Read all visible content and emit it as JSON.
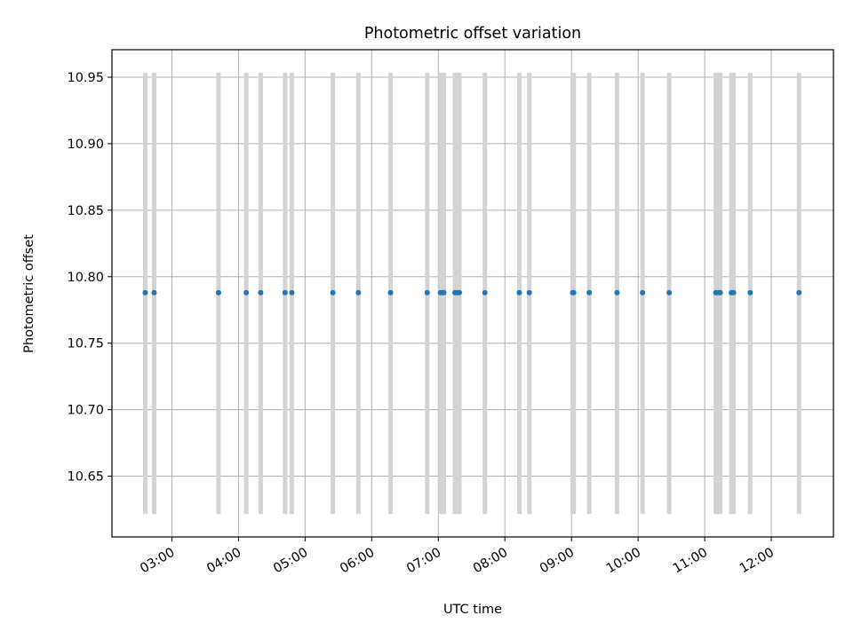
{
  "chart_data": {
    "type": "scatter",
    "title": "Photometric offset variation",
    "xlabel": "UTC time",
    "ylabel": "Photometric offset",
    "x_is_time": true,
    "xlim": [
      "02:06",
      "12:56"
    ],
    "ylim": [
      10.6043,
      10.9707
    ],
    "xticks": [
      "03:00",
      "04:00",
      "05:00",
      "06:00",
      "07:00",
      "08:00",
      "09:00",
      "10:00",
      "11:00",
      "12:00"
    ],
    "yticks": [
      "10.65",
      "10.70",
      "10.75",
      "10.80",
      "10.85",
      "10.90",
      "10.95"
    ],
    "grid": true,
    "point_color": "#1f77b4",
    "bar_color": "#d3d3d3",
    "error_range": [
      10.6216,
      10.9534
    ],
    "series": [
      {
        "y": 10.788,
        "x": [
          "02:36",
          "02:44",
          "03:42",
          "04:07",
          "04:20",
          "04:42",
          "04:48",
          "05:25",
          "05:48",
          "06:17",
          "06:50",
          "07:02",
          "07:04",
          "07:05",
          "07:15",
          "07:17",
          "07:19",
          "07:42",
          "08:13",
          "08:22",
          "09:01",
          "09:02",
          "09:16",
          "09:41",
          "10:04",
          "10:28",
          "11:10",
          "11:12",
          "11:14",
          "11:24",
          "11:26",
          "11:41",
          "12:25"
        ]
      }
    ]
  }
}
